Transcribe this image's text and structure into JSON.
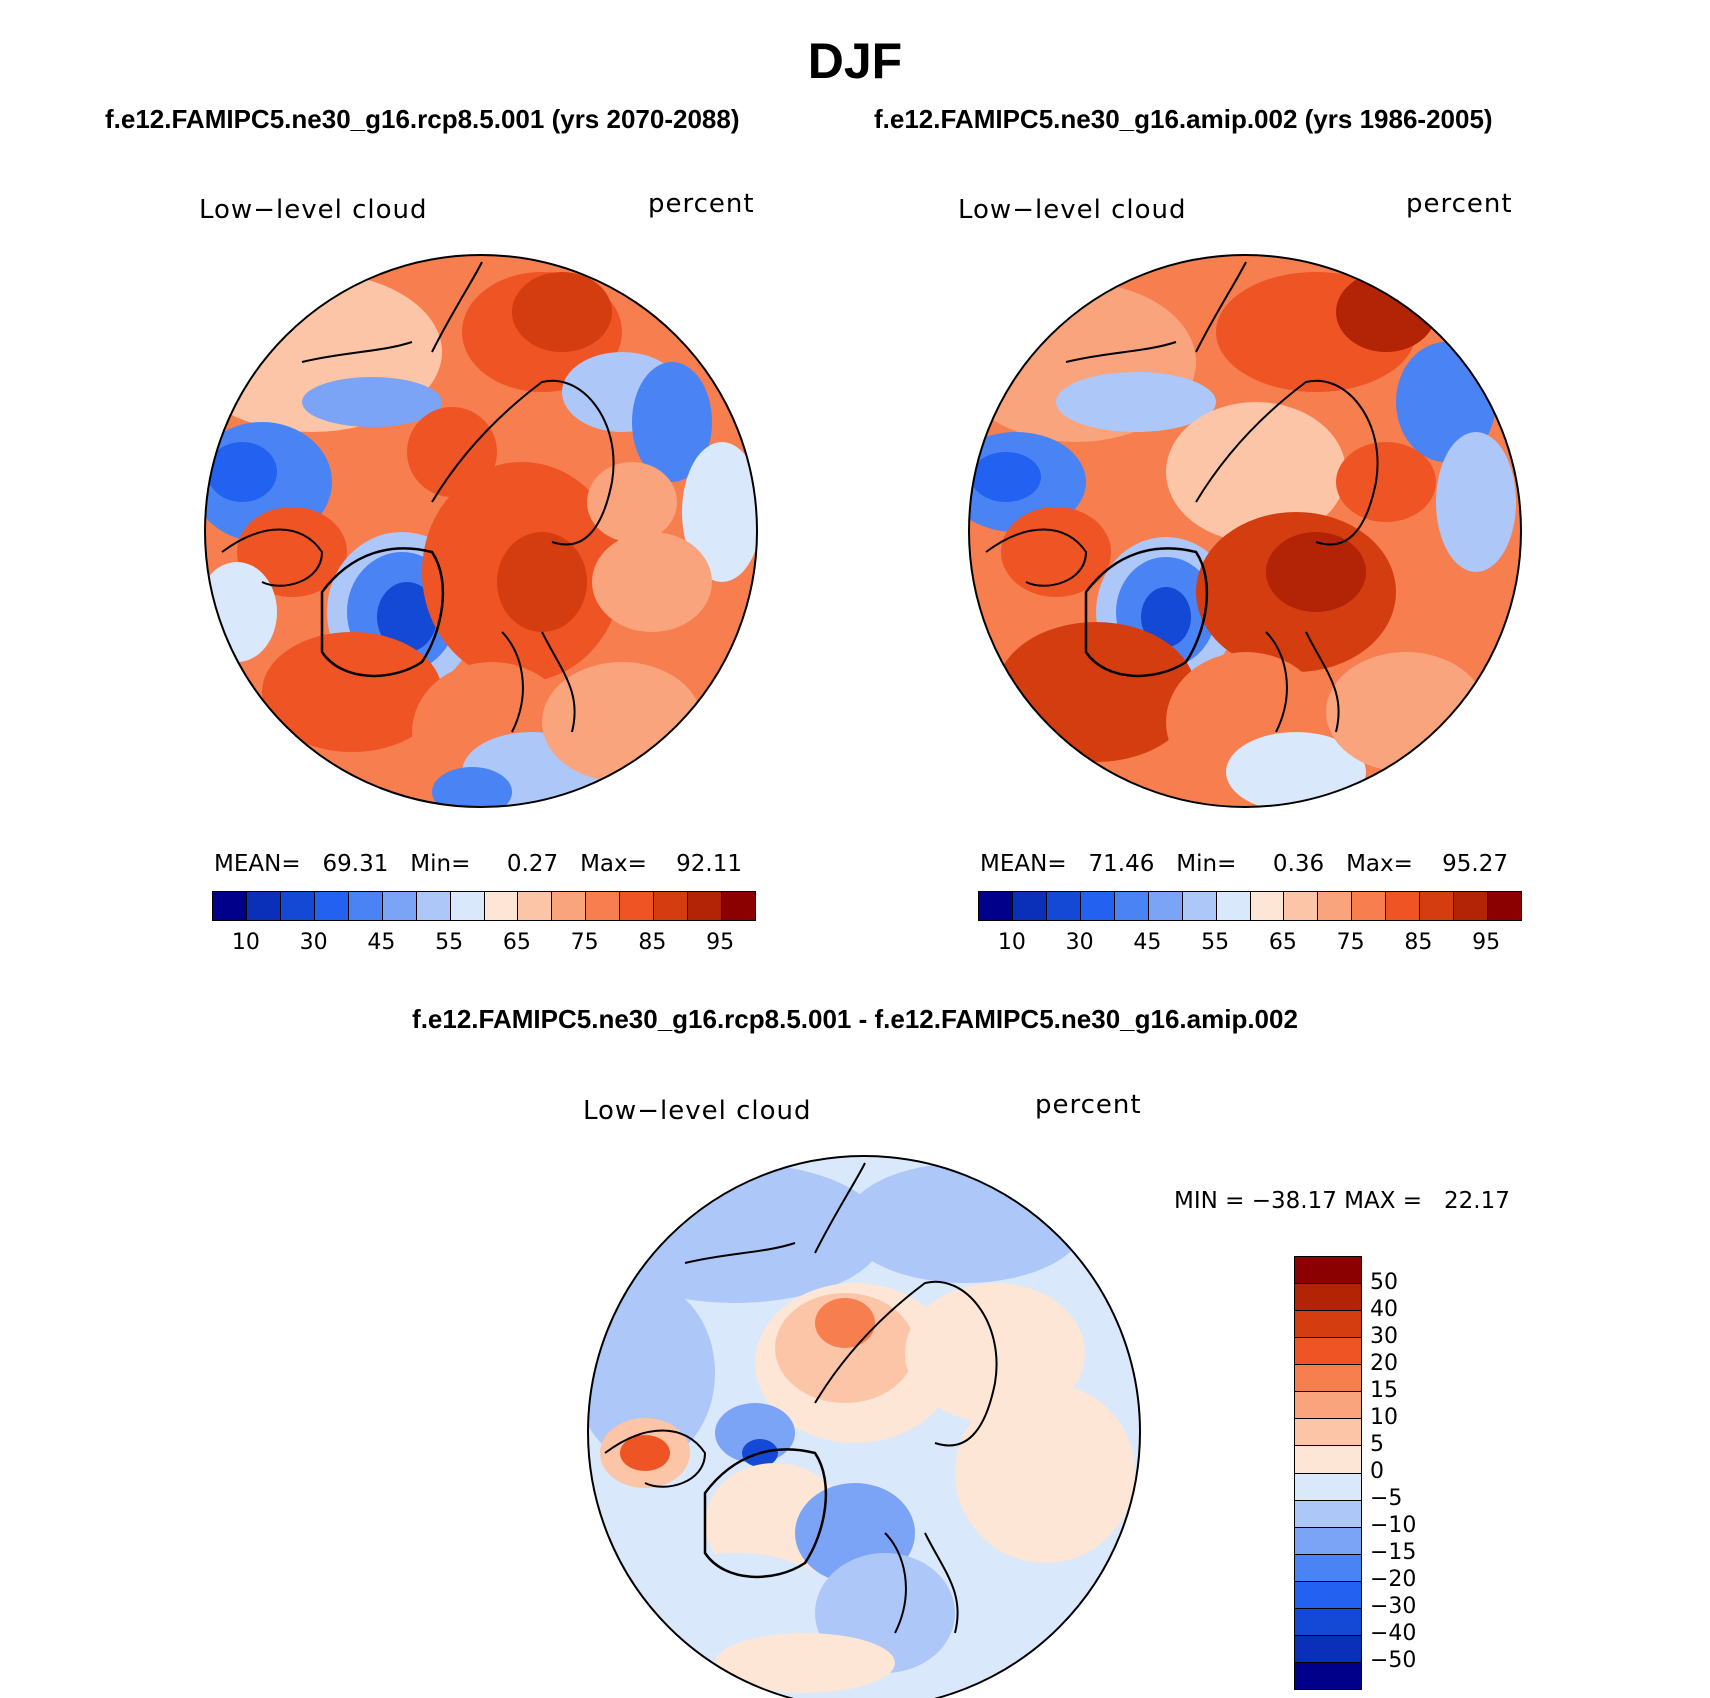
{
  "title": "DJF",
  "panel_a": {
    "case_title": "f.e12.FAMIPC5.ne30_g16.rcp8.5.001 (yrs 2070-2088)",
    "left_label": "Low−level cloud",
    "right_label": "percent",
    "stats": "MEAN=   69.31   Min=     0.27   Max=    92.11"
  },
  "panel_b": {
    "case_title": "f.e12.FAMIPC5.ne30_g16.amip.002 (yrs 1986-2005)",
    "left_label": "Low−level cloud",
    "right_label": "percent",
    "stats": "MEAN=   71.46   Min=     0.36   Max=    95.27"
  },
  "panel_diff": {
    "case_title": "f.e12.FAMIPC5.ne30_g16.rcp8.5.001 - f.e12.FAMIPC5.ne30_g16.amip.002",
    "left_label": "Low−level cloud",
    "right_label": "percent",
    "stats": "MIN = −38.17 MAX =   22.17"
  },
  "colorbar_main": {
    "tick_labels": [
      "10",
      "30",
      "45",
      "55",
      "65",
      "75",
      "85",
      "95"
    ],
    "colors": [
      "#00008b",
      "#0a2fb8",
      "#1449d6",
      "#2362f0",
      "#4a83f3",
      "#7ba3f6",
      "#adc7f8",
      "#d9e8fb",
      "#fde6d6",
      "#fcc5a7",
      "#f9a47c",
      "#f67e4f",
      "#ef5424",
      "#d43d10",
      "#b32305",
      "#8b0000"
    ]
  },
  "colorbar_diff": {
    "tick_labels": [
      "50",
      "40",
      "30",
      "20",
      "15",
      "10",
      "5",
      "0",
      "−5",
      "−10",
      "−15",
      "−20",
      "−30",
      "−40",
      "−50"
    ],
    "colors": [
      "#8b0000",
      "#b32305",
      "#d43d10",
      "#ef5424",
      "#f67e4f",
      "#f9a47c",
      "#fcc5a7",
      "#fde6d6",
      "#d9e8fb",
      "#adc7f8",
      "#7ba3f6",
      "#4a83f3",
      "#2362f0",
      "#1449d6",
      "#0a2fb8",
      "#00008b"
    ]
  },
  "map_colors": {
    "deep_red": "#b32305",
    "red": "#ef5424",
    "orange": "#f67e4f",
    "salmon": "#f9a47c",
    "peach": "#fcc5a7",
    "cream": "#fde6d6",
    "pale_blue": "#d9e8fb",
    "light_blue": "#adc7f8",
    "mid_blue": "#7ba3f6",
    "blue": "#4a83f3",
    "strong_blue": "#2362f0",
    "deep_blue": "#1449d6"
  }
}
